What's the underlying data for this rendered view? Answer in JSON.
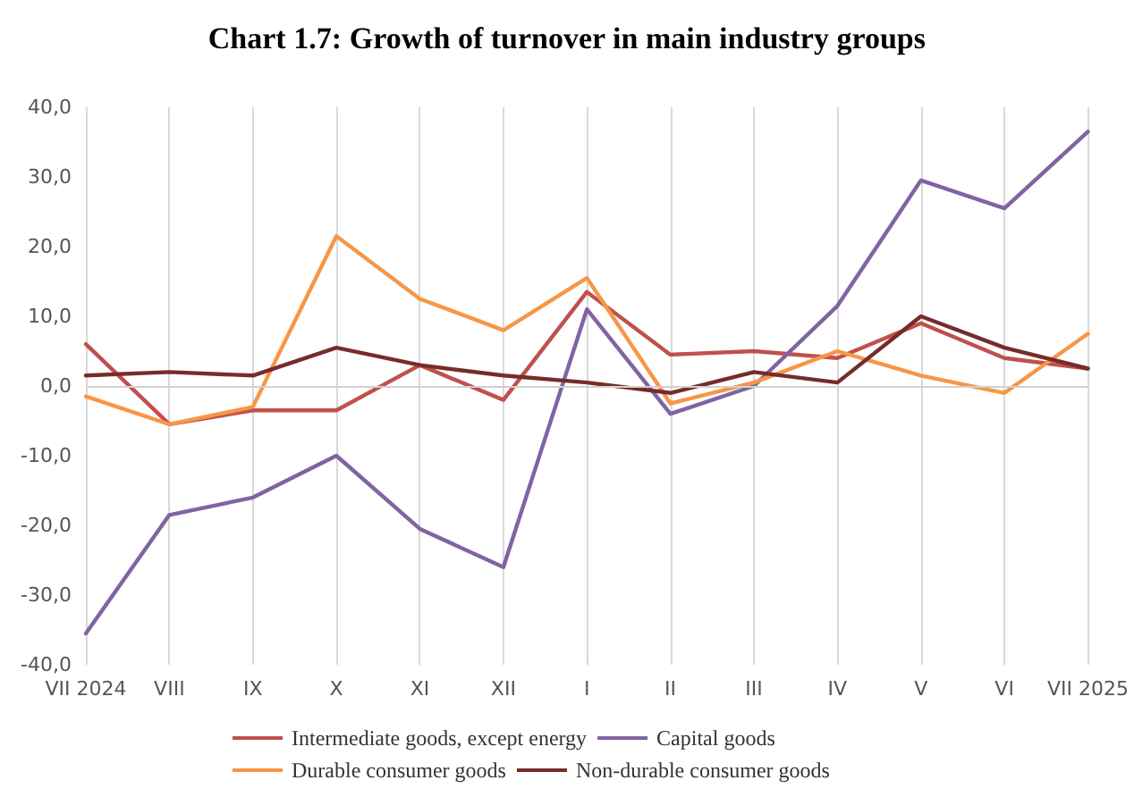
{
  "chart_data": {
    "type": "line",
    "title": "Chart 1.7: Growth of turnover in main industry groups",
    "categories": [
      "VII 2024",
      "VIII",
      "IX",
      "X",
      "XI",
      "XII",
      "I",
      "II",
      "III",
      "IV",
      "V",
      "VI",
      "VII 2025"
    ],
    "series": [
      {
        "name": "Intermediate goods, except energy",
        "color": "#c0504d",
        "values": [
          6,
          -5.5,
          -3.5,
          -3.5,
          3,
          -2,
          13.5,
          4.5,
          5,
          4,
          9,
          4,
          2.5
        ]
      },
      {
        "name": "Capital goods",
        "color": "#8064a2",
        "values": [
          -35.5,
          -18.5,
          -16,
          -10,
          -20.5,
          -26,
          11,
          -4,
          0,
          11.5,
          29.5,
          25.5,
          36.5
        ]
      },
      {
        "name": "Durable consumer goods",
        "color": "#f79646",
        "values": [
          -1.5,
          -5.5,
          -3,
          21.5,
          12.5,
          8,
          15.5,
          -2.5,
          0.5,
          5,
          1.5,
          -1,
          7.5
        ]
      },
      {
        "name": "Non-durable consumer goods",
        "color": "#772c2a",
        "values": [
          1.5,
          2,
          1.5,
          5.5,
          3,
          1.5,
          0.5,
          -1,
          2,
          0.5,
          10,
          5.5,
          2.5
        ]
      }
    ],
    "ylim": [
      -40,
      40
    ],
    "yticks": [
      {
        "value": -40,
        "label": "-40,0"
      },
      {
        "value": -30,
        "label": "-30,0"
      },
      {
        "value": -20,
        "label": "-20,0"
      },
      {
        "value": -10,
        "label": "-10,0"
      },
      {
        "value": 0,
        "label": "0,0"
      },
      {
        "value": 10,
        "label": "10,0"
      },
      {
        "value": 20,
        "label": "20,0"
      },
      {
        "value": 30,
        "label": "30,0"
      },
      {
        "value": 40,
        "label": "40,0"
      }
    ],
    "grid": "x",
    "legend": "bottom",
    "marker": "none",
    "line_style": "solid"
  }
}
